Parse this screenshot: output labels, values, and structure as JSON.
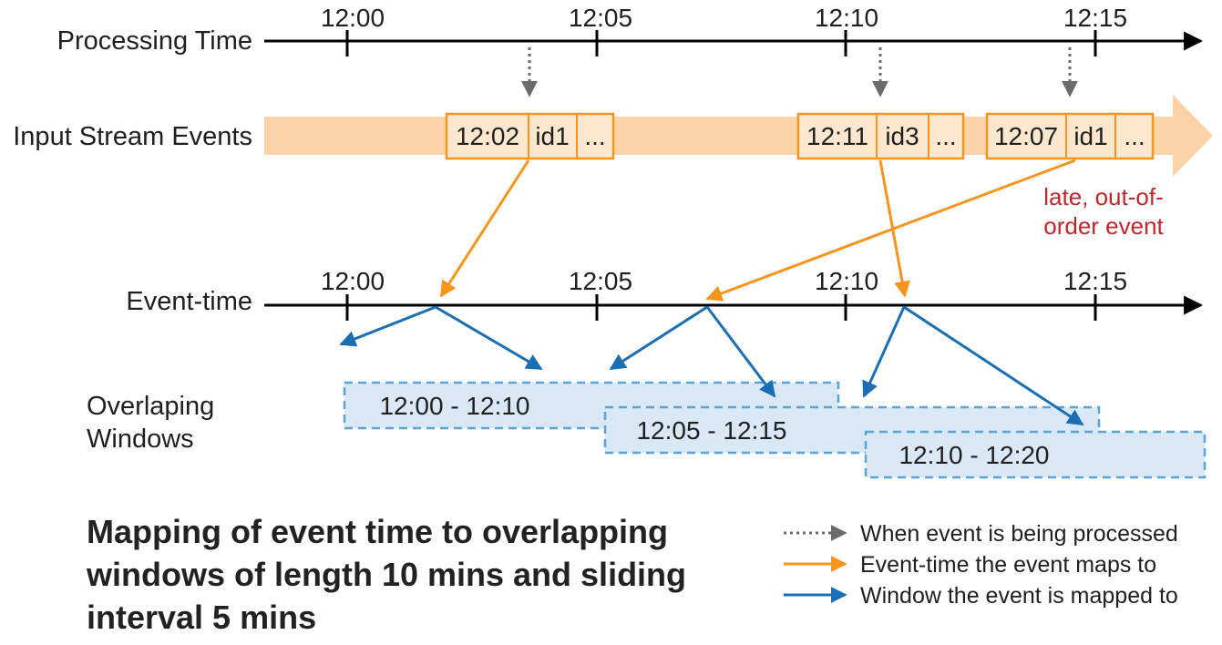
{
  "processing_time": {
    "label": "Processing Time",
    "ticks": [
      "12:00",
      "12:05",
      "12:10",
      "12:15"
    ]
  },
  "input_stream": {
    "label": "Input Stream Events",
    "events": [
      {
        "time": "12:02",
        "id": "id1",
        "more": "..."
      },
      {
        "time": "12:11",
        "id": "id3",
        "more": "..."
      },
      {
        "time": "12:07",
        "id": "id1",
        "more": "..."
      }
    ],
    "late_note": [
      "late, out-of-",
      "order event"
    ]
  },
  "event_time": {
    "label": "Event-time",
    "ticks": [
      "12:00",
      "12:05",
      "12:10",
      "12:15"
    ]
  },
  "windows": {
    "label": [
      "Overlaping",
      "Windows"
    ],
    "items": [
      "12:00 - 12:10",
      "12:05 - 12:15",
      "12:10 - 12:20"
    ]
  },
  "caption": [
    "Mapping of event time to overlapping",
    "windows of length 10 mins and sliding",
    "interval 5 mins"
  ],
  "legend": {
    "processed": "When event is being processed",
    "event_time": "Event-time the event maps to",
    "window": "Window the event is mapped to"
  },
  "colors": {
    "orange": "#f7941d",
    "stream_fill": "#fbd3a6",
    "cell_fill": "#fde7cf",
    "blue": "#1a6fb4",
    "window_fill": "#d9e8f4",
    "window_border": "#5aa3d8",
    "gray": "#6b6b6b",
    "late": "#c0272d"
  }
}
